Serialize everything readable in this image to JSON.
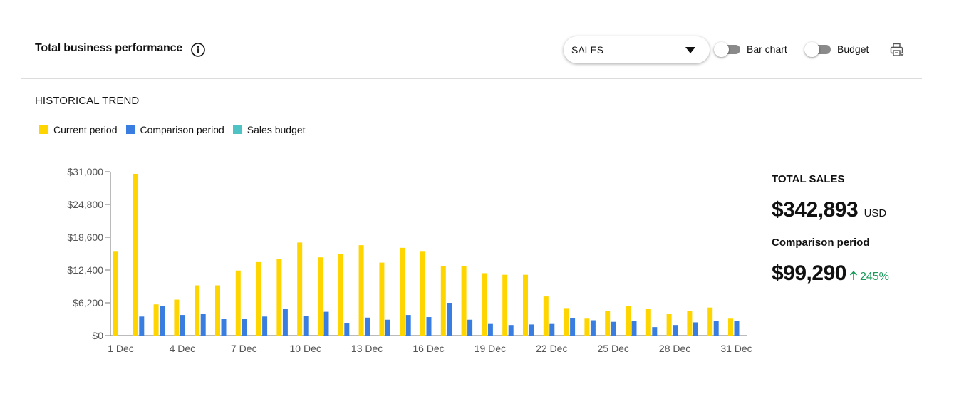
{
  "header": {
    "title": "Total business performance",
    "dropdown_value": "SALES",
    "toggle_bar_chart_label": "Bar chart",
    "toggle_budget_label": "Budget"
  },
  "section": {
    "title": "HISTORICAL TREND"
  },
  "legend": [
    {
      "label": "Current period",
      "color": "#FFD500"
    },
    {
      "label": "Comparison period",
      "color": "#3A7DE0"
    },
    {
      "label": "Sales budget",
      "color": "#4DC3C3"
    }
  ],
  "summary": {
    "total_label": "TOTAL SALES",
    "total_value": "$342,893",
    "total_unit": "USD",
    "comparison_label": "Comparison period",
    "comparison_value": "$99,290",
    "change": "245%",
    "change_color": "#1A9A5A"
  },
  "chart_data": {
    "type": "bar",
    "categories": [
      "1 Dec",
      "2 Dec",
      "3 Dec",
      "4 Dec",
      "5 Dec",
      "6 Dec",
      "7 Dec",
      "8 Dec",
      "9 Dec",
      "10 Dec",
      "11 Dec",
      "12 Dec",
      "13 Dec",
      "14 Dec",
      "15 Dec",
      "16 Dec",
      "17 Dec",
      "18 Dec",
      "19 Dec",
      "20 Dec",
      "21 Dec",
      "22 Dec",
      "23 Dec",
      "24 Dec",
      "25 Dec",
      "26 Dec",
      "27 Dec",
      "28 Dec",
      "29 Dec",
      "30 Dec",
      "31 Dec"
    ],
    "tick_labels": [
      "1 Dec",
      "4 Dec",
      "7 Dec",
      "10 Dec",
      "13 Dec",
      "16 Dec",
      "19 Dec",
      "22 Dec",
      "25 Dec",
      "28 Dec",
      "31 Dec"
    ],
    "series": [
      {
        "name": "Current period",
        "color": "#FFD500",
        "values": [
          16000,
          30600,
          5900,
          6800,
          9500,
          9500,
          12300,
          13900,
          14500,
          17600,
          14800,
          15400,
          17100,
          13800,
          16600,
          16000,
          13200,
          13100,
          11800,
          11500,
          11500,
          7400,
          5200,
          3200,
          4600,
          5600,
          5100,
          4100,
          4600,
          5300,
          3200
        ]
      },
      {
        "name": "Comparison period",
        "color": "#3A7DE0",
        "values": [
          null,
          3600,
          5600,
          3900,
          4100,
          3100,
          3100,
          3600,
          5000,
          3700,
          4500,
          2400,
          3400,
          3000,
          3900,
          3500,
          6200,
          3000,
          2200,
          2000,
          2100,
          2200,
          3300,
          2900,
          2600,
          2700,
          1600,
          2000,
          2500,
          2700,
          2700
        ]
      }
    ],
    "ylim": [
      0,
      31000
    ],
    "yticks": [
      0,
      6200,
      12400,
      18600,
      24800,
      31000
    ],
    "ytick_labels": [
      "$0",
      "$6,200",
      "$12,400",
      "$18,600",
      "$24,800",
      "$31,000"
    ],
    "xlabel": "",
    "ylabel": "",
    "grid": false,
    "legend_position": "top-left"
  }
}
